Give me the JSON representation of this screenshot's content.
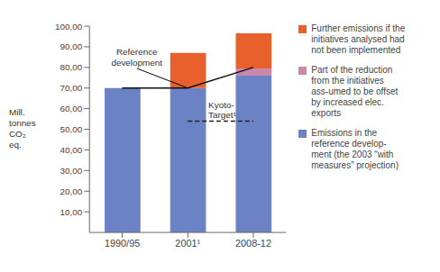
{
  "chart_data": {
    "type": "bar",
    "stacked": true,
    "grid": false,
    "categories": [
      "1990/95",
      "2001¹",
      "2008-12"
    ],
    "ylabel": "Mill.\ntonnes\nCO₂\neq.",
    "ylim": [
      0,
      100
    ],
    "yticks": [
      {
        "value": 10,
        "label": "10,00"
      },
      {
        "value": 20,
        "label": "20,00"
      },
      {
        "value": 30,
        "label": "30,00"
      },
      {
        "value": 40,
        "label": "40,00"
      },
      {
        "value": 50,
        "label": "50,00"
      },
      {
        "value": 60,
        "label": "60,00"
      },
      {
        "value": 70,
        "label": "70,00"
      },
      {
        "value": 80,
        "label": "80,00"
      },
      {
        "value": 90,
        "label": "90,00"
      },
      {
        "value": 100,
        "label": "100,00"
      }
    ],
    "series": [
      {
        "name": "Emissions in the\nreference develop-\nment (the 2003 “with\nmeasures” projection)",
        "type": "bar",
        "color": "#6b82c4",
        "values": [
          70.0,
          70.0,
          76.0
        ]
      },
      {
        "name": "Part of the reduction\nfrom the initiatives\nass-umed to be offset\nby increased elec.\nexports",
        "type": "bar",
        "color": "#cc88aa",
        "values": [
          0.0,
          0.0,
          3.5
        ]
      },
      {
        "name": "Further emissions if the\ninitiatives analysed had\nnot been implemented",
        "type": "bar",
        "color": "#e8602c",
        "values": [
          0.0,
          17.0,
          17.0
        ]
      },
      {
        "type": "line",
        "color": "#111111",
        "values": [
          70.0,
          70.0,
          80.0
        ]
      }
    ],
    "annotations": [
      {
        "text": "Reference\ndevelopment",
        "x": "2001¹",
        "y": 70.0
      },
      {
        "text": "Kyoto-\nTarget¹",
        "x": [
          "2001¹",
          "2008-12"
        ],
        "y": 54.0,
        "color": "#222222",
        "line_style": "dashed"
      }
    ]
  }
}
